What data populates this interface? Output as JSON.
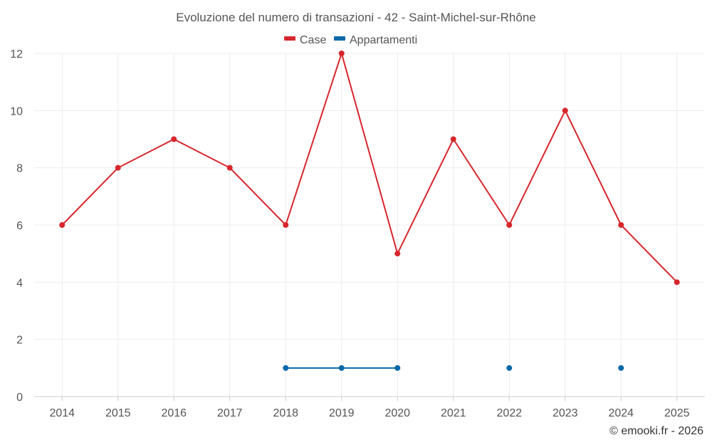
{
  "chart_data": {
    "type": "line",
    "title": "Evoluzione del numero di transazioni - 42 - Saint-Michel-sur-Rhône",
    "categories": [
      "2014",
      "2015",
      "2016",
      "2017",
      "2018",
      "2019",
      "2020",
      "2021",
      "2022",
      "2023",
      "2024",
      "2025"
    ],
    "series": [
      {
        "name": "Case",
        "color": "#d7262c",
        "values": [
          6,
          8,
          9,
          8,
          6,
          12,
          5,
          9,
          6,
          10,
          6,
          4
        ]
      },
      {
        "name": "Appartamenti",
        "color": "#0868a8",
        "values": [
          null,
          null,
          null,
          null,
          1,
          1,
          1,
          null,
          1,
          null,
          1,
          null
        ]
      }
    ],
    "ylim": [
      0,
      12
    ],
    "yticks": [
      0,
      2,
      4,
      6,
      8,
      10,
      12
    ],
    "grid": true,
    "legend_position": "top-center",
    "xlabel": "",
    "ylabel": ""
  },
  "credit": "© emooki.fr - 2026"
}
